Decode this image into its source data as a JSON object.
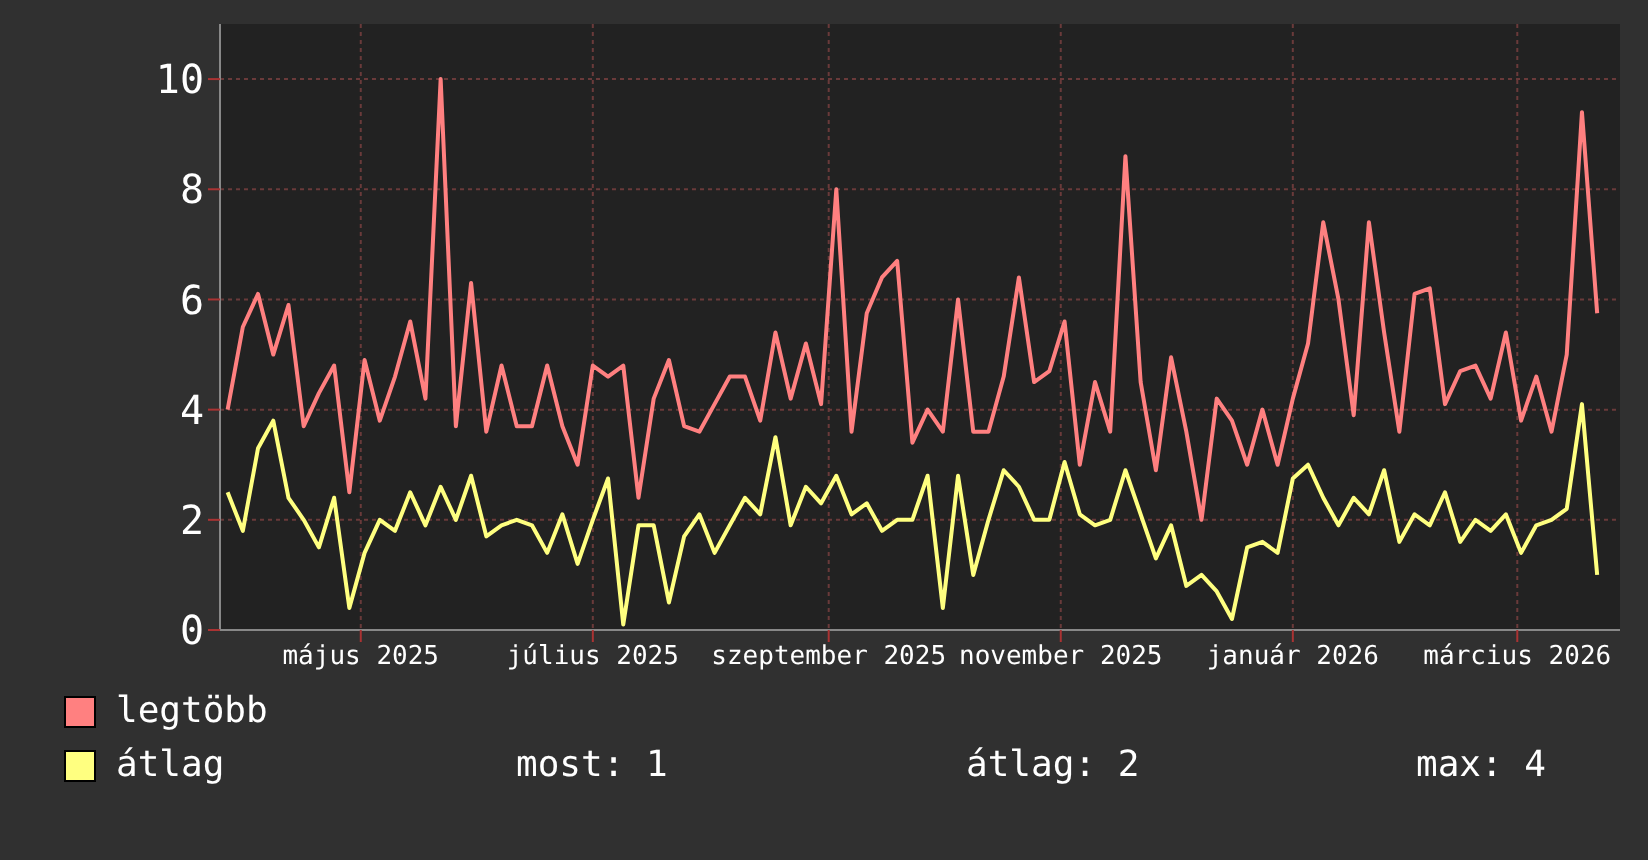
{
  "chart_data": {
    "type": "line",
    "x": [
      "2025-03-27",
      "2025-03-31",
      "2025-04-04",
      "2025-04-08",
      "2025-04-12",
      "2025-04-16",
      "2025-04-20",
      "2025-04-24",
      "2025-04-28",
      "2025-05-02",
      "2025-05-06",
      "2025-05-10",
      "2025-05-14",
      "2025-05-18",
      "2025-05-22",
      "2025-05-26",
      "2025-05-30",
      "2025-06-03",
      "2025-06-07",
      "2025-06-11",
      "2025-06-15",
      "2025-06-19",
      "2025-06-23",
      "2025-06-27",
      "2025-07-01",
      "2025-07-05",
      "2025-07-09",
      "2025-07-13",
      "2025-07-17",
      "2025-07-21",
      "2025-07-25",
      "2025-07-29",
      "2025-08-02",
      "2025-08-06",
      "2025-08-10",
      "2025-08-14",
      "2025-08-18",
      "2025-08-22",
      "2025-08-26",
      "2025-08-30",
      "2025-09-03",
      "2025-09-07",
      "2025-09-11",
      "2025-09-15",
      "2025-09-19",
      "2025-09-23",
      "2025-09-27",
      "2025-10-01",
      "2025-10-05",
      "2025-10-09",
      "2025-10-13",
      "2025-10-17",
      "2025-10-21",
      "2025-10-25",
      "2025-10-29",
      "2025-11-02",
      "2025-11-06",
      "2025-11-10",
      "2025-11-14",
      "2025-11-18",
      "2025-11-22",
      "2025-11-26",
      "2025-11-30",
      "2025-12-04",
      "2025-12-08",
      "2025-12-12",
      "2025-12-16",
      "2025-12-20",
      "2025-12-24",
      "2025-12-28",
      "2026-01-01",
      "2026-01-05",
      "2026-01-09",
      "2026-01-13",
      "2026-01-17",
      "2026-01-21",
      "2026-01-25",
      "2026-01-29",
      "2026-02-02",
      "2026-02-06",
      "2026-02-10",
      "2026-02-14",
      "2026-02-18",
      "2026-02-22",
      "2026-02-26",
      "2026-03-02",
      "2026-03-06",
      "2026-03-10",
      "2026-03-14",
      "2026-03-18",
      "2026-03-22"
    ],
    "series": [
      {
        "name": "legtöbb",
        "color": "#ff8080",
        "values": [
          4.0,
          5.5,
          6.1,
          5.0,
          5.9,
          3.7,
          4.3,
          4.8,
          2.5,
          4.9,
          3.8,
          4.6,
          5.6,
          4.2,
          10.0,
          3.7,
          6.3,
          3.6,
          4.8,
          3.7,
          3.7,
          4.8,
          3.7,
          3.0,
          4.8,
          4.6,
          4.8,
          2.4,
          4.2,
          4.9,
          3.7,
          3.6,
          4.1,
          4.6,
          4.6,
          3.8,
          5.4,
          4.2,
          5.2,
          4.1,
          8.0,
          3.6,
          5.75,
          6.4,
          6.7,
          3.4,
          4.0,
          3.6,
          6.0,
          3.6,
          3.6,
          4.6,
          6.4,
          4.5,
          4.7,
          5.6,
          3.0,
          4.5,
          3.6,
          8.6,
          4.5,
          2.9,
          4.95,
          3.6,
          2.0,
          4.2,
          3.8,
          3.0,
          4.0,
          3.0,
          4.2,
          5.2,
          7.4,
          6.0,
          3.9,
          7.4,
          5.4,
          3.6,
          6.1,
          6.2,
          4.1,
          4.7,
          4.8,
          4.2,
          5.4,
          3.8,
          4.6,
          3.6,
          5.0,
          9.4,
          5.75
        ]
      },
      {
        "name": "átlag",
        "color": "#ffff80",
        "values": [
          2.5,
          1.8,
          3.3,
          3.8,
          2.4,
          2.0,
          1.5,
          2.4,
          0.4,
          1.4,
          2.0,
          1.8,
          2.5,
          1.9,
          2.6,
          2.0,
          2.8,
          1.7,
          1.9,
          2.0,
          1.9,
          1.4,
          2.1,
          1.2,
          2.0,
          2.75,
          0.1,
          1.9,
          1.9,
          0.5,
          1.7,
          2.1,
          1.4,
          1.9,
          2.4,
          2.1,
          3.5,
          1.9,
          2.6,
          2.3,
          2.8,
          2.1,
          2.3,
          1.8,
          2.0,
          2.0,
          2.8,
          0.4,
          2.8,
          1.0,
          2.0,
          2.9,
          2.6,
          2.0,
          2.0,
          3.05,
          2.1,
          1.9,
          2.0,
          2.9,
          2.1,
          1.3,
          1.9,
          0.8,
          1.0,
          0.7,
          0.2,
          1.5,
          1.6,
          1.4,
          2.75,
          3.0,
          2.4,
          1.9,
          2.4,
          2.1,
          2.9,
          1.6,
          2.1,
          1.9,
          2.5,
          1.6,
          2.0,
          1.8,
          2.1,
          1.4,
          1.9,
          2.0,
          2.2,
          4.1,
          1.0
        ]
      }
    ],
    "xlim": [
      "2025-03-25",
      "2026-03-28"
    ],
    "xticks": [
      {
        "value": "2025-05-01",
        "label": "május 2025"
      },
      {
        "value": "2025-07-01",
        "label": "július 2025"
      },
      {
        "value": "2025-09-01",
        "label": "szeptember 2025"
      },
      {
        "value": "2025-11-01",
        "label": "november 2025"
      },
      {
        "value": "2026-01-01",
        "label": "január 2026"
      },
      {
        "value": "2026-03-01",
        "label": "március 2026"
      }
    ],
    "ylim": [
      0,
      11
    ],
    "yticks": [
      0,
      2,
      4,
      6,
      8,
      10
    ],
    "grid": true,
    "legend": "bottom",
    "marker": "none",
    "line_style": "solid",
    "annotations": [
      "most: 1",
      "átlag: 2",
      "max: 4"
    ]
  }
}
